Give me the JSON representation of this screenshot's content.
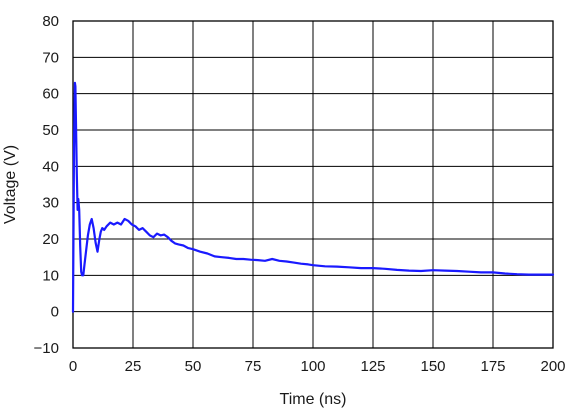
{
  "chart_data": {
    "type": "line",
    "xlabel": "Time (ns)",
    "ylabel": "Voltage (V)",
    "xlim": [
      0,
      200
    ],
    "ylim": [
      -10,
      80
    ],
    "xticks": [
      0,
      25,
      50,
      75,
      100,
      125,
      150,
      175,
      200
    ],
    "yticks": [
      -10,
      0,
      10,
      20,
      30,
      40,
      50,
      60,
      70,
      80
    ],
    "xtick_labels": [
      "0",
      "25",
      "50",
      "75",
      "100",
      "125",
      "150",
      "175",
      "200"
    ],
    "ytick_labels": [
      "−10",
      "0",
      "10",
      "20",
      "30",
      "40",
      "50",
      "60",
      "70",
      "80"
    ],
    "grid": true,
    "legend": "none",
    "series": [
      {
        "color": "#1a1aff",
        "x": [
          0,
          0.4,
          0.8,
          1.0,
          1.3,
          1.6,
          1.9,
          2.2,
          2.6,
          3.0,
          3.4,
          3.8,
          4.3,
          4.8,
          5.5,
          6.2,
          7.0,
          7.8,
          8.6,
          9.4,
          10.2,
          11.0,
          11.6,
          12.2,
          13.0,
          14.0,
          15.5,
          17.0,
          18.5,
          20.0,
          21.5,
          23.0,
          24.5,
          26.0,
          27.5,
          29.0,
          30.5,
          32.0,
          33.5,
          35.0,
          36.5,
          38.0,
          39.5,
          41.0,
          42.5,
          44.0,
          46.0,
          48.0,
          50.0,
          53.0,
          56.0,
          59.0,
          62.0,
          65.0,
          68.0,
          71.0,
          74.0,
          77.0,
          80.0,
          83.0,
          86.0,
          89.0,
          92.0,
          95.0,
          98.0,
          100.0,
          105.0,
          110.0,
          115.0,
          120.0,
          125.0,
          130.0,
          135.0,
          140.0,
          145.0,
          150.0,
          155.0,
          160.0,
          165.0,
          170.0,
          175.0,
          180.0,
          185.0,
          190.0,
          195.0,
          200.0
        ],
        "y": [
          0,
          45,
          63,
          62,
          50,
          38,
          28,
          31,
          28,
          18,
          11,
          10,
          10,
          13,
          17,
          21,
          24,
          25.5,
          23,
          19,
          16.5,
          20,
          22,
          23,
          22.5,
          23.5,
          24.5,
          24,
          24.5,
          24,
          25.5,
          25,
          24,
          23.5,
          22.5,
          23,
          22,
          21,
          20.5,
          21.5,
          21,
          21.2,
          20.5,
          19.5,
          18.8,
          18.5,
          18.2,
          17.5,
          17.2,
          16.5,
          16,
          15.2,
          15,
          14.8,
          14.5,
          14.5,
          14.3,
          14.2,
          14,
          14.5,
          14,
          13.8,
          13.5,
          13.2,
          13,
          12.8,
          12.5,
          12.4,
          12.2,
          12,
          12,
          11.8,
          11.5,
          11.3,
          11.2,
          11.4,
          11.3,
          11.2,
          11,
          10.8,
          10.8,
          10.5,
          10.3,
          10.2,
          10.2,
          10.2
        ]
      }
    ]
  }
}
